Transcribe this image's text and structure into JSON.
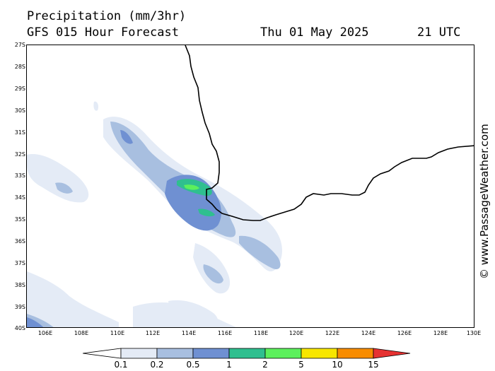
{
  "header": {
    "title": "Precipitation (mm/3hr)",
    "subtitle": "GFS 015 Hour Forecast",
    "date": "Thu 01 May 2025",
    "time": "21 UTC"
  },
  "map": {
    "lat_labels": [
      "27S",
      "28S",
      "29S",
      "30S",
      "31S",
      "32S",
      "33S",
      "34S",
      "35S",
      "36S",
      "37S",
      "38S",
      "39S",
      "40S"
    ],
    "lon_labels": [
      "106E",
      "108E",
      "110E",
      "112E",
      "114E",
      "116E",
      "118E",
      "120E",
      "122E",
      "124E",
      "126E",
      "128E",
      "130E"
    ],
    "lat_range": [
      -27,
      -40
    ],
    "lon_range": [
      105,
      130
    ],
    "land_outline_color": "#000000"
  },
  "precip_colors": {
    "p0_1": "#e4ebf6",
    "p0_2": "#a8bfe0",
    "p0_5": "#6f90d2",
    "p1": "#2fbf8f",
    "p2": "#5cf05c"
  },
  "legend": {
    "labels": [
      "0.1",
      "0.2",
      "0.5",
      "1",
      "2",
      "5",
      "10",
      "15"
    ],
    "colors": [
      "#ffffff",
      "#e4ebf6",
      "#a8bfe0",
      "#6f90d2",
      "#2fbf8f",
      "#5cf05c",
      "#f7e600",
      "#f78c00",
      "#e63232"
    ]
  },
  "watermark": "© www.PassageWeather.com"
}
